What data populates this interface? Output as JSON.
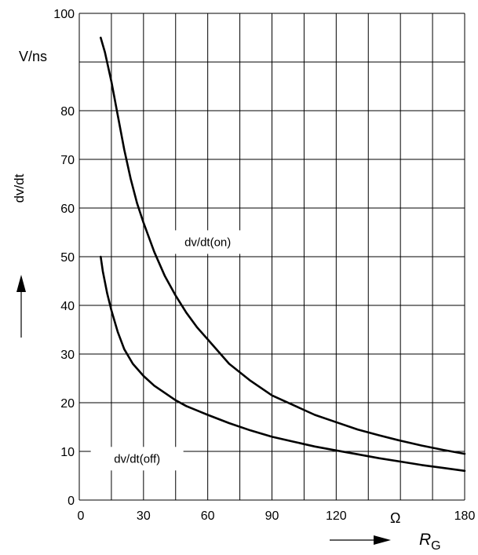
{
  "chart_data": {
    "type": "line",
    "title": "",
    "ylabel": "dv/dt",
    "yunit": "V/ns",
    "xlabel": "R",
    "xlabel_subscript": "G",
    "xunit": "Ω",
    "xlim": [
      0,
      180
    ],
    "ylim": [
      0,
      100
    ],
    "grid": true,
    "x_ticks": [
      {
        "value": 0,
        "label": "0"
      },
      {
        "value": 30,
        "label": "30"
      },
      {
        "value": 60,
        "label": "60"
      },
      {
        "value": 90,
        "label": "90"
      },
      {
        "value": 120,
        "label": "120"
      },
      {
        "value": 180,
        "label": "180"
      }
    ],
    "y_ticks": [
      {
        "value": 0,
        "label": "0"
      },
      {
        "value": 10,
        "label": "10"
      },
      {
        "value": 20,
        "label": "20"
      },
      {
        "value": 30,
        "label": "30"
      },
      {
        "value": 40,
        "label": "40"
      },
      {
        "value": 50,
        "label": "50"
      },
      {
        "value": 60,
        "label": "60"
      },
      {
        "value": 70,
        "label": "70"
      },
      {
        "value": 80,
        "label": "80"
      },
      {
        "value": 100,
        "label": "100"
      }
    ],
    "series": [
      {
        "name": "dv/dt(on)",
        "label_at": {
          "x": 60,
          "y": 53
        },
        "points": [
          [
            10,
            95
          ],
          [
            12,
            92
          ],
          [
            15,
            86
          ],
          [
            18,
            79
          ],
          [
            21,
            72
          ],
          [
            24,
            66
          ],
          [
            27,
            61
          ],
          [
            30,
            57
          ],
          [
            35,
            51
          ],
          [
            40,
            46
          ],
          [
            45,
            42
          ],
          [
            50,
            38.5
          ],
          [
            55,
            35.5
          ],
          [
            60,
            33
          ],
          [
            70,
            28
          ],
          [
            80,
            24.5
          ],
          [
            90,
            21.5
          ],
          [
            100,
            19.5
          ],
          [
            110,
            17.5
          ],
          [
            120,
            16
          ],
          [
            130,
            14.5
          ],
          [
            140,
            13.3
          ],
          [
            150,
            12.2
          ],
          [
            160,
            11.2
          ],
          [
            170,
            10.3
          ],
          [
            180,
            9.5
          ]
        ]
      },
      {
        "name": "dv/dt(off)",
        "label_at": {
          "x": 27,
          "y": 8.5
        },
        "points": [
          [
            10,
            50
          ],
          [
            11,
            47
          ],
          [
            13,
            42.5
          ],
          [
            15,
            39
          ],
          [
            18,
            34.5
          ],
          [
            21,
            31
          ],
          [
            25,
            28
          ],
          [
            30,
            25.5
          ],
          [
            35,
            23.5
          ],
          [
            40,
            22
          ],
          [
            45,
            20.5
          ],
          [
            50,
            19.3
          ],
          [
            60,
            17.5
          ],
          [
            70,
            15.8
          ],
          [
            80,
            14.3
          ],
          [
            90,
            13
          ],
          [
            100,
            12
          ],
          [
            110,
            11
          ],
          [
            120,
            10.2
          ],
          [
            130,
            9.4
          ],
          [
            140,
            8.6
          ],
          [
            150,
            7.9
          ],
          [
            160,
            7.2
          ],
          [
            170,
            6.6
          ],
          [
            180,
            6
          ]
        ]
      }
    ]
  }
}
